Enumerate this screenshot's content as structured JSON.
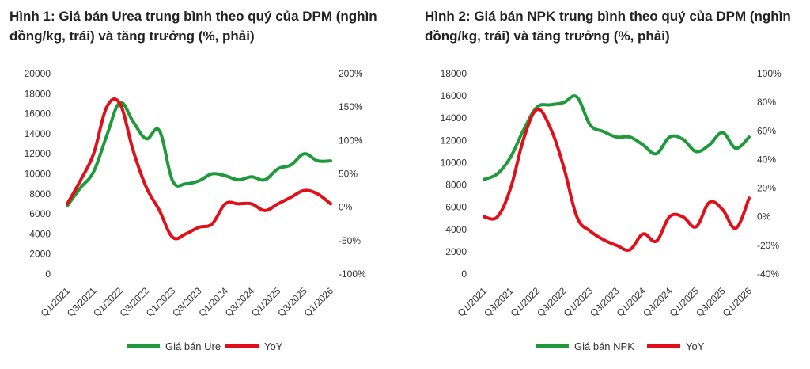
{
  "chart_data": [
    {
      "type": "line",
      "title": "Hình 1: Giá bán Urea trung bình theo quý của DPM (nghìn đồng/kg, trái) và tăng trưởng (%, phải)",
      "x": [
        "Q1/2021",
        "Q2/2021",
        "Q3/2021",
        "Q4/2021",
        "Q1/2022",
        "Q2/2022",
        "Q3/2022",
        "Q4/2022",
        "Q1/2023",
        "Q2/2023",
        "Q3/2023",
        "Q4/2023",
        "Q1/2024",
        "Q2/2024",
        "Q3/2024",
        "Q4/2024",
        "Q1/2025",
        "Q2/2025",
        "Q3/2025",
        "Q4/2025",
        "Q1/2026"
      ],
      "x_tick_labels": [
        "Q1/2021",
        "Q3/2021",
        "Q1/2022",
        "Q3/2022",
        "Q1/2023",
        "Q3/2023",
        "Q1/2024",
        "Q3/2024",
        "Q1/2025",
        "Q3/2025",
        "Q1/2026"
      ],
      "y_left_ticks": [
        "0",
        "2000",
        "4000",
        "6000",
        "8000",
        "10000",
        "12000",
        "14000",
        "16000",
        "18000",
        "20000"
      ],
      "y_right_ticks": [
        "-100%",
        "-50%",
        "0%",
        "50%",
        "100%",
        "150%",
        "200%"
      ],
      "ylim_left": [
        0,
        20000
      ],
      "ylim_right": [
        -100,
        200
      ],
      "series": [
        {
          "name": "Giá bán Ure",
          "axis": "left",
          "color": "#1f9a3a",
          "values": [
            6800,
            8600,
            10200,
            13800,
            17100,
            15200,
            13500,
            14300,
            9300,
            9000,
            9300,
            10000,
            9800,
            9400,
            9700,
            9400,
            10500,
            10900,
            12000,
            11300,
            11300
          ]
        },
        {
          "name": "YoY",
          "axis": "right",
          "color": "#e0101a",
          "values": [
            5,
            40,
            80,
            150,
            155,
            85,
            30,
            -5,
            -45,
            -40,
            -30,
            -25,
            5,
            5,
            5,
            -5,
            5,
            15,
            25,
            20,
            5
          ]
        }
      ],
      "legend": "bottom"
    },
    {
      "type": "line",
      "title": "Hình 2: Giá bán NPK trung bình theo quý của DPM (nghìn đồng/kg, trái) và tăng trưởng (%, phải)",
      "x": [
        "Q1/2021",
        "Q2/2021",
        "Q3/2021",
        "Q4/2021",
        "Q1/2022",
        "Q2/2022",
        "Q3/2022",
        "Q4/2022",
        "Q1/2023",
        "Q2/2023",
        "Q3/2023",
        "Q4/2023",
        "Q1/2024",
        "Q2/2024",
        "Q3/2024",
        "Q4/2024",
        "Q1/2025",
        "Q2/2025",
        "Q3/2025",
        "Q4/2025",
        "Q1/2026"
      ],
      "x_tick_labels": [
        "Q1/2021",
        "Q3/2021",
        "Q1/2022",
        "Q3/2022",
        "Q1/2023",
        "Q3/2023",
        "Q1/2024",
        "Q3/2024",
        "Q1/2025",
        "Q3/2025",
        "Q1/2026"
      ],
      "y_left_ticks": [
        "0",
        "2000",
        "4000",
        "6000",
        "8000",
        "10000",
        "12000",
        "14000",
        "16000",
        "18000"
      ],
      "y_right_ticks": [
        "-40%",
        "-20%",
        "0%",
        "20%",
        "40%",
        "60%",
        "80%",
        "100%"
      ],
      "ylim_left": [
        0,
        18000
      ],
      "ylim_right": [
        -40,
        100
      ],
      "series": [
        {
          "name": "Giá bán NPK",
          "axis": "left",
          "color": "#1f9a3a",
          "values": [
            8500,
            9000,
            10500,
            13000,
            15000,
            15200,
            15400,
            15900,
            13400,
            12800,
            12300,
            12300,
            11600,
            10800,
            12300,
            12100,
            11000,
            11600,
            12700,
            11300,
            12300
          ]
        },
        {
          "name": "YoY",
          "axis": "right",
          "color": "#e0101a",
          "values": [
            0,
            0,
            20,
            55,
            75,
            62,
            35,
            0,
            -10,
            -16,
            -20,
            -23,
            -12,
            -17,
            0,
            0,
            -7,
            10,
            5,
            -8,
            13
          ]
        }
      ],
      "legend": "bottom"
    }
  ]
}
